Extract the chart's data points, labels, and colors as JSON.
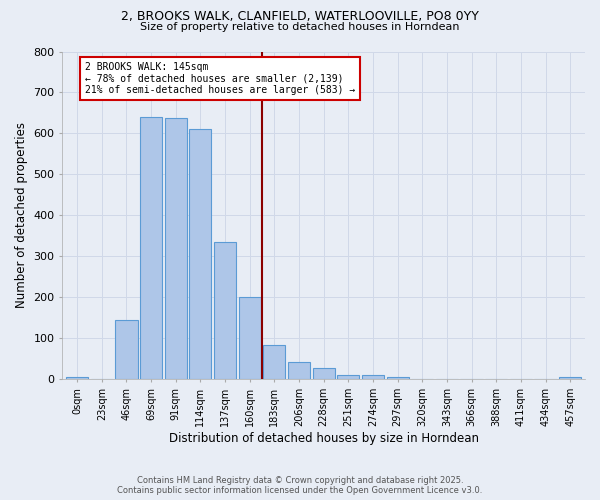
{
  "title_line1": "2, BROOKS WALK, CLANFIELD, WATERLOOVILLE, PO8 0YY",
  "title_line2": "Size of property relative to detached houses in Horndean",
  "xlabel": "Distribution of detached houses by size in Horndean",
  "ylabel": "Number of detached properties",
  "bin_labels": [
    "0sqm",
    "23sqm",
    "46sqm",
    "69sqm",
    "91sqm",
    "114sqm",
    "137sqm",
    "160sqm",
    "183sqm",
    "206sqm",
    "228sqm",
    "251sqm",
    "274sqm",
    "297sqm",
    "320sqm",
    "343sqm",
    "366sqm",
    "388sqm",
    "411sqm",
    "434sqm",
    "457sqm"
  ],
  "bar_heights": [
    5,
    0,
    145,
    640,
    638,
    612,
    335,
    200,
    85,
    42,
    27,
    10,
    12,
    5,
    0,
    0,
    0,
    0,
    0,
    0,
    5
  ],
  "bar_color": "#aec6e8",
  "bar_edge_color": "#5b9bd5",
  "vline_color": "#8b0000",
  "annotation_title": "2 BROOKS WALK: 145sqm",
  "annotation_line1": "← 78% of detached houses are smaller (2,139)",
  "annotation_line2": "21% of semi-detached houses are larger (583) →",
  "annotation_box_color": "#ffffff",
  "annotation_box_edge": "#cc0000",
  "grid_color": "#d0d8e8",
  "bg_color": "#e8edf5",
  "footer_line1": "Contains HM Land Registry data © Crown copyright and database right 2025.",
  "footer_line2": "Contains public sector information licensed under the Open Government Licence v3.0.",
  "ylim": [
    0,
    800
  ],
  "yticks": [
    0,
    100,
    200,
    300,
    400,
    500,
    600,
    700,
    800
  ]
}
